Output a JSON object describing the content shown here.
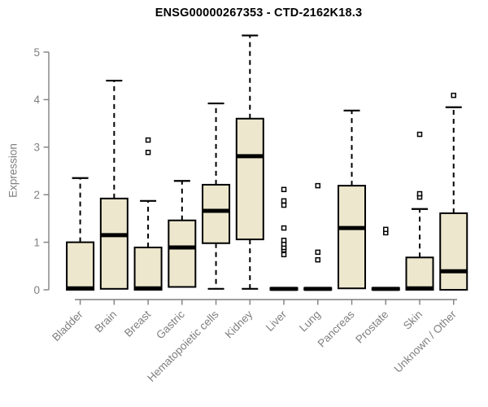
{
  "page": {
    "background": "#ffffff"
  },
  "chart_data": {
    "type": "boxplot",
    "title": "ENSG00000267353 - CTD-2162K18.3",
    "xlabel": "",
    "ylabel": "Expression",
    "ylim": [
      0,
      5
    ],
    "yticks": [
      0,
      1,
      2,
      3,
      4,
      5
    ],
    "grid": false,
    "legend": false,
    "colors": {
      "box_fill": "#ece7cd",
      "box_stroke": "#000000",
      "median": "#000000",
      "whisker": "#000000",
      "outlier": "#000000",
      "axis": "#7f7f7f",
      "tick_label": "#7f7f7f",
      "title": "#000000"
    },
    "categories": [
      "Bladder",
      "Brain",
      "Breast",
      "Gastric",
      "Hematopoietic cells",
      "Kidney",
      "Liver",
      "Lung",
      "Pancreas",
      "Prostate",
      "Skin",
      "Unknown / Other"
    ],
    "series": [
      {
        "category": "Bladder",
        "whisker_low": 0,
        "q1": 0,
        "median": 0.03,
        "q3": 1.0,
        "whisker_high": 2.35,
        "outliers": []
      },
      {
        "category": "Brain",
        "whisker_low": 0.02,
        "q1": 0.02,
        "median": 1.15,
        "q3": 1.92,
        "whisker_high": 4.4,
        "outliers": []
      },
      {
        "category": "Breast",
        "whisker_low": 0,
        "q1": 0,
        "median": 0.03,
        "q3": 0.89,
        "whisker_high": 1.87,
        "outliers": [
          2.89,
          3.15
        ]
      },
      {
        "category": "Gastric",
        "whisker_low": 0.06,
        "q1": 0.06,
        "median": 0.89,
        "q3": 1.46,
        "whisker_high": 2.29,
        "outliers": []
      },
      {
        "category": "Hematopoietic cells",
        "whisker_low": 0.02,
        "q1": 0.98,
        "median": 1.66,
        "q3": 2.21,
        "whisker_high": 3.92,
        "outliers": []
      },
      {
        "category": "Kidney",
        "whisker_low": 0.02,
        "q1": 1.06,
        "median": 2.81,
        "q3": 3.6,
        "whisker_high": 5.35,
        "outliers": []
      },
      {
        "category": "Liver",
        "whisker_low": 0,
        "q1": 0,
        "median": 0.02,
        "q3": 0.04,
        "whisker_high": 0.04,
        "outliers": [
          0.74,
          0.84,
          0.89,
          0.96,
          1.04,
          1.3,
          1.78,
          1.87,
          2.11
        ]
      },
      {
        "category": "Lung",
        "whisker_low": 0,
        "q1": 0,
        "median": 0.02,
        "q3": 0.04,
        "whisker_high": 0.04,
        "outliers": [
          0.63,
          0.79,
          2.19
        ]
      },
      {
        "category": "Pancreas",
        "whisker_low": 0.03,
        "q1": 0.03,
        "median": 1.3,
        "q3": 2.19,
        "whisker_high": 3.77,
        "outliers": []
      },
      {
        "category": "Prostate",
        "whisker_low": 0,
        "q1": 0,
        "median": 0.02,
        "q3": 0.04,
        "whisker_high": 0.04,
        "outliers": [
          1.2,
          1.27
        ]
      },
      {
        "category": "Skin",
        "whisker_low": 0,
        "q1": 0,
        "median": 0.03,
        "q3": 0.68,
        "whisker_high": 1.7,
        "outliers": [
          1.95,
          2.02,
          3.27
        ]
      },
      {
        "category": "Unknown / Other",
        "whisker_low": 0,
        "q1": 0,
        "median": 0.39,
        "q3": 1.61,
        "whisker_high": 3.84,
        "outliers": [
          4.09
        ]
      }
    ]
  }
}
